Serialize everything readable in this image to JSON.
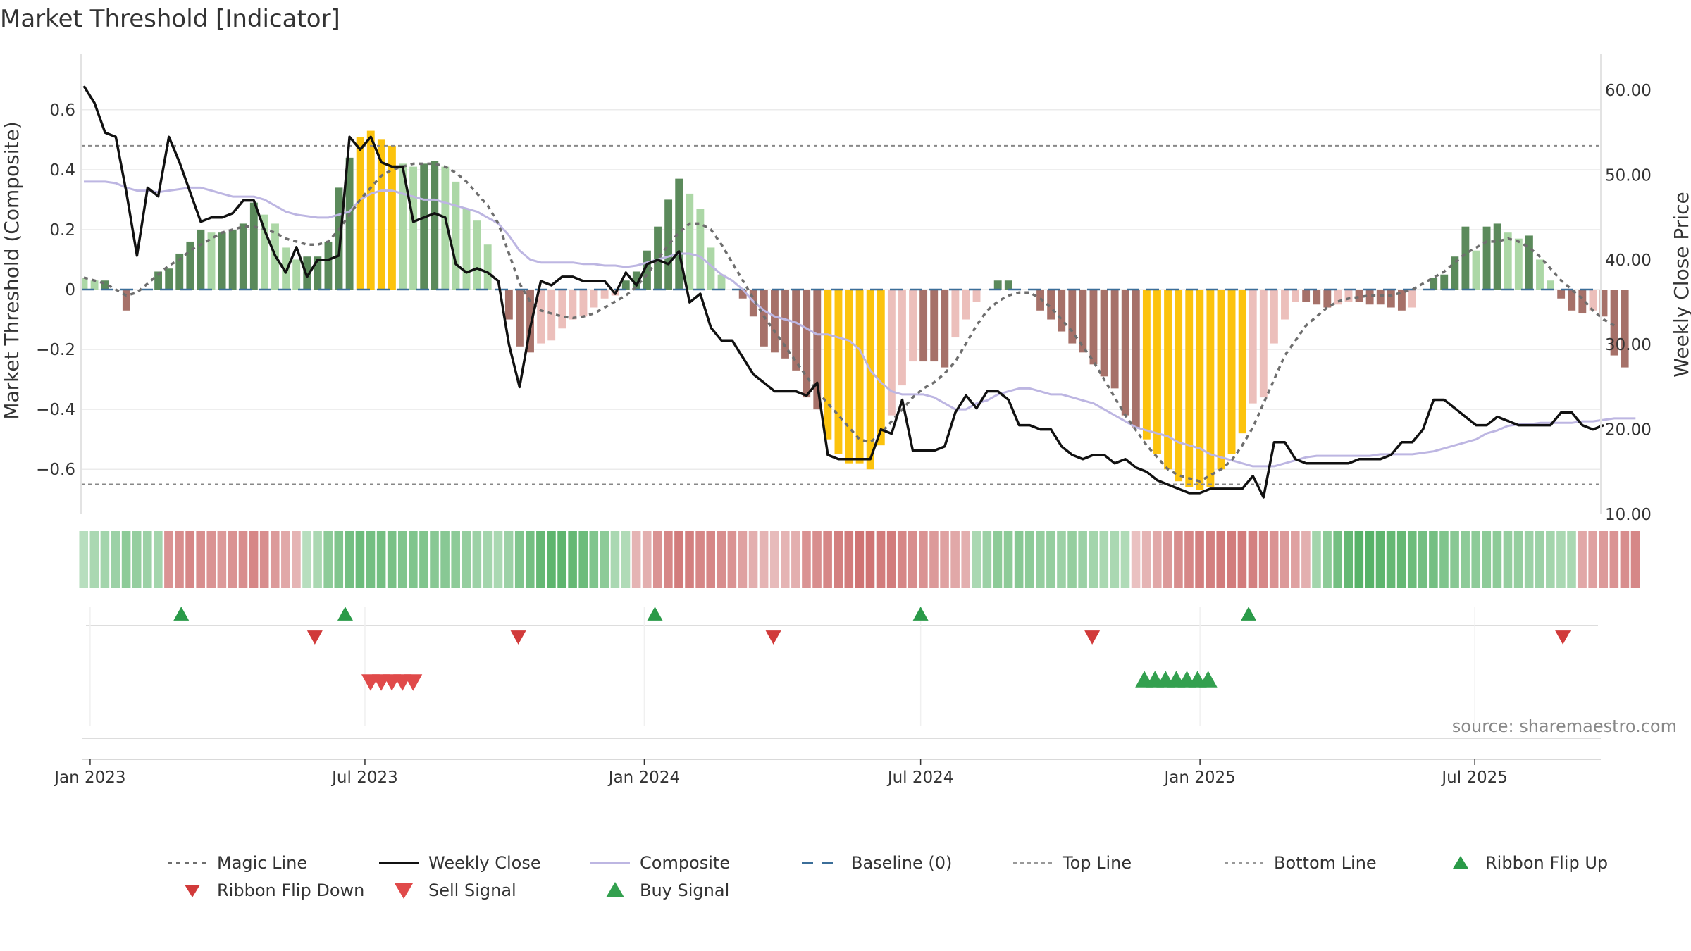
{
  "chart_data": {
    "type": "bar",
    "title": "Market Threshold [Indicator]",
    "ylabel": "Market Threshold (Composite)",
    "y2label": "Weekly Close Price",
    "ylim": [
      -0.75,
      0.75
    ],
    "y2lim": [
      10,
      63
    ],
    "yticks": [
      0.6,
      0.4,
      0.2,
      0,
      -0.2,
      -0.4,
      -0.6
    ],
    "ytick_labels": [
      "0.6",
      "0.4",
      "0.2",
      "0",
      "−0.2",
      "−0.4",
      "−0.6"
    ],
    "y2ticks": [
      60,
      50,
      40,
      30,
      20,
      10
    ],
    "y2tick_labels": [
      "60.00",
      "50.00",
      "40.00",
      "30.00",
      "20.00",
      "10.00"
    ],
    "x_start": "2022-12-26",
    "x_end": "2025-09-22",
    "x_ticks": [
      {
        "date": "2023-01-01",
        "label": "Jan 2023"
      },
      {
        "date": "2023-07-01",
        "label": "Jul 2023"
      },
      {
        "date": "2024-01-01",
        "label": "Jan 2024"
      },
      {
        "date": "2024-07-01",
        "label": "Jul 2024"
      },
      {
        "date": "2025-01-01",
        "label": "Jan 2025"
      },
      {
        "date": "2025-07-01",
        "label": "Jul 2025"
      }
    ],
    "top_line": 0.48,
    "bottom_line": -0.65,
    "baseline": 0,
    "bars_start": "2022-12-26",
    "bar_values": [
      0.04,
      0.03,
      0.03,
      0.0,
      -0.07,
      0.0,
      0.0,
      0.06,
      0.07,
      0.12,
      0.16,
      0.2,
      0.19,
      0.19,
      0.2,
      0.22,
      0.29,
      0.25,
      0.22,
      0.14,
      0.1,
      0.11,
      0.11,
      0.16,
      0.34,
      0.44,
      0.51,
      0.53,
      0.5,
      0.48,
      0.42,
      0.41,
      0.42,
      0.43,
      0.41,
      0.36,
      0.27,
      0.23,
      0.15,
      0.0,
      -0.1,
      -0.19,
      -0.21,
      -0.18,
      -0.17,
      -0.13,
      -0.1,
      -0.09,
      -0.06,
      -0.03,
      -0.02,
      0.03,
      0.06,
      0.13,
      0.21,
      0.3,
      0.37,
      0.32,
      0.27,
      0.14,
      0.05,
      0.0,
      -0.03,
      -0.09,
      -0.19,
      -0.21,
      -0.23,
      -0.27,
      -0.36,
      -0.4,
      -0.5,
      -0.55,
      -0.58,
      -0.58,
      -0.6,
      -0.52,
      -0.42,
      -0.32,
      -0.24,
      -0.24,
      -0.24,
      -0.26,
      -0.16,
      -0.1,
      -0.04,
      0.0,
      0.03,
      0.03,
      0.0,
      0.0,
      -0.07,
      -0.1,
      -0.14,
      -0.18,
      -0.21,
      -0.25,
      -0.29,
      -0.33,
      -0.42,
      -0.46,
      -0.5,
      -0.55,
      -0.6,
      -0.64,
      -0.66,
      -0.67,
      -0.66,
      -0.6,
      -0.55,
      -0.48,
      -0.38,
      -0.36,
      -0.18,
      -0.1,
      -0.04,
      -0.04,
      -0.05,
      -0.06,
      -0.05,
      -0.04,
      -0.04,
      -0.05,
      -0.05,
      -0.06,
      -0.07,
      -0.06,
      0.0,
      0.04,
      0.05,
      0.11,
      0.21,
      0.13,
      0.21,
      0.22,
      0.19,
      0.17,
      0.18,
      0.1,
      0.03,
      -0.03,
      -0.07,
      -0.08,
      -0.07,
      -0.09,
      -0.22,
      -0.26
    ],
    "bar_colors": {
      "pos_strong": "#5b8a5b",
      "pos_weak": "#acd7a6",
      "neg_strong": "#a67169",
      "neg_weak": "#ecbfbb",
      "extreme": "#fcc30d"
    },
    "series": [
      {
        "name": "Weekly Close",
        "axis": "right",
        "color": "#111111",
        "values": [
          60.5,
          58.5,
          55.0,
          54.5,
          48.0,
          40.5,
          48.5,
          47.5,
          54.5,
          51.5,
          48.0,
          44.5,
          45.0,
          45.0,
          45.5,
          47.0,
          47.0,
          43.5,
          40.5,
          38.5,
          41.5,
          38.0,
          40.0,
          40.0,
          40.5,
          54.5,
          53.0,
          54.5,
          51.5,
          51.0,
          51.0,
          44.5,
          45.0,
          45.5,
          45.0,
          39.5,
          38.5,
          39.0,
          38.5,
          37.5,
          30.0,
          25.0,
          32.0,
          37.5,
          37.0,
          38.0,
          38.0,
          37.5,
          37.5,
          37.5,
          36.0,
          38.5,
          37.0,
          39.5,
          40.0,
          39.5,
          41.0,
          35.0,
          36.0,
          32.0,
          30.5,
          30.5,
          28.5,
          26.5,
          25.5,
          24.5,
          24.5,
          24.5,
          24.0,
          25.5,
          17.0,
          16.5,
          16.5,
          16.5,
          16.5,
          20.0,
          19.5,
          23.5,
          17.5,
          17.5,
          17.5,
          18.0,
          22.0,
          24.0,
          22.5,
          24.5,
          24.5,
          23.5,
          20.5,
          20.5,
          20.0,
          20.0,
          18.0,
          17.0,
          16.5,
          17.0,
          17.0,
          16.0,
          16.5,
          15.5,
          15.0,
          14.0,
          13.5,
          13.0,
          12.5,
          12.5,
          13.0,
          13.0,
          13.0,
          13.0,
          14.5,
          12.0,
          18.5,
          18.5,
          16.5,
          16.0,
          16.0,
          16.0,
          16.0,
          16.0,
          16.5,
          16.5,
          16.5,
          17.0,
          18.5,
          18.5,
          20.0,
          23.5,
          23.5,
          22.5,
          21.5,
          20.5,
          20.5,
          21.5,
          21.0,
          20.5,
          20.5,
          20.5,
          20.5,
          22.0,
          22.0,
          20.5,
          20.0,
          20.5
        ]
      },
      {
        "name": "Composite",
        "axis": "left",
        "color": "#bdb6e2",
        "values": [
          0.36,
          0.36,
          0.36,
          0.355,
          0.34,
          0.33,
          0.33,
          0.325,
          0.33,
          0.335,
          0.34,
          0.34,
          0.33,
          0.32,
          0.31,
          0.31,
          0.31,
          0.3,
          0.28,
          0.26,
          0.25,
          0.245,
          0.24,
          0.24,
          0.25,
          0.26,
          0.3,
          0.32,
          0.33,
          0.33,
          0.32,
          0.31,
          0.3,
          0.3,
          0.29,
          0.28,
          0.27,
          0.26,
          0.24,
          0.22,
          0.18,
          0.13,
          0.1,
          0.09,
          0.09,
          0.09,
          0.09,
          0.085,
          0.085,
          0.08,
          0.08,
          0.075,
          0.08,
          0.09,
          0.1,
          0.11,
          0.12,
          0.12,
          0.11,
          0.08,
          0.05,
          0.03,
          0.0,
          -0.04,
          -0.07,
          -0.09,
          -0.1,
          -0.11,
          -0.13,
          -0.15,
          -0.15,
          -0.16,
          -0.17,
          -0.2,
          -0.27,
          -0.31,
          -0.34,
          -0.35,
          -0.35,
          -0.35,
          -0.36,
          -0.38,
          -0.4,
          -0.4,
          -0.38,
          -0.37,
          -0.35,
          -0.34,
          -0.33,
          -0.33,
          -0.34,
          -0.35,
          -0.35,
          -0.36,
          -0.37,
          -0.38,
          -0.4,
          -0.42,
          -0.44,
          -0.46,
          -0.47,
          -0.48,
          -0.49,
          -0.51,
          -0.52,
          -0.53,
          -0.55,
          -0.56,
          -0.57,
          -0.58,
          -0.59,
          -0.59,
          -0.59,
          -0.58,
          -0.57,
          -0.56,
          -0.555,
          -0.555,
          -0.555,
          -0.555,
          -0.555,
          -0.555,
          -0.55,
          -0.55,
          -0.55,
          -0.55,
          -0.545,
          -0.54,
          -0.53,
          -0.52,
          -0.51,
          -0.5,
          -0.48,
          -0.47,
          -0.455,
          -0.45,
          -0.45,
          -0.445,
          -0.445,
          -0.445,
          -0.445,
          -0.44,
          -0.44,
          -0.435,
          -0.43,
          -0.43,
          -0.43
        ]
      },
      {
        "name": "Magic Line",
        "axis": "left",
        "color": "#6e6e6e",
        "values": [
          0.04,
          0.03,
          0.02,
          0.0,
          -0.02,
          -0.01,
          0.02,
          0.05,
          0.08,
          0.1,
          0.13,
          0.15,
          0.17,
          0.19,
          0.2,
          0.21,
          0.21,
          0.2,
          0.19,
          0.17,
          0.16,
          0.15,
          0.15,
          0.16,
          0.2,
          0.25,
          0.3,
          0.34,
          0.38,
          0.4,
          0.41,
          0.42,
          0.42,
          0.42,
          0.41,
          0.39,
          0.36,
          0.32,
          0.28,
          0.22,
          0.12,
          0.02,
          -0.04,
          -0.07,
          -0.08,
          -0.09,
          -0.095,
          -0.09,
          -0.08,
          -0.06,
          -0.04,
          -0.02,
          0.01,
          0.05,
          0.1,
          0.15,
          0.19,
          0.22,
          0.22,
          0.2,
          0.15,
          0.09,
          0.03,
          -0.03,
          -0.09,
          -0.14,
          -0.19,
          -0.24,
          -0.29,
          -0.34,
          -0.38,
          -0.42,
          -0.46,
          -0.5,
          -0.51,
          -0.48,
          -0.44,
          -0.4,
          -0.36,
          -0.33,
          -0.31,
          -0.28,
          -0.24,
          -0.18,
          -0.12,
          -0.07,
          -0.04,
          -0.02,
          -0.01,
          -0.01,
          -0.03,
          -0.06,
          -0.1,
          -0.14,
          -0.19,
          -0.24,
          -0.3,
          -0.36,
          -0.42,
          -0.47,
          -0.52,
          -0.56,
          -0.6,
          -0.62,
          -0.63,
          -0.64,
          -0.62,
          -0.6,
          -0.57,
          -0.52,
          -0.46,
          -0.38,
          -0.3,
          -0.22,
          -0.17,
          -0.12,
          -0.09,
          -0.06,
          -0.04,
          -0.03,
          -0.025,
          -0.02,
          -0.02,
          -0.02,
          -0.01,
          0.0,
          0.02,
          0.04,
          0.06,
          0.09,
          0.12,
          0.14,
          0.16,
          0.16,
          0.17,
          0.16,
          0.14,
          0.11,
          0.07,
          0.03,
          0.0,
          -0.03,
          -0.07,
          -0.1,
          -0.12
        ]
      }
    ],
    "ribbon": [
      0.2,
      0.3,
      0.35,
      0.4,
      0.5,
      0.45,
      0.4,
      0.35,
      -0.5,
      -0.55,
      -0.6,
      -0.55,
      -0.5,
      -0.45,
      -0.5,
      -0.55,
      -0.6,
      -0.55,
      -0.45,
      -0.35,
      -0.25,
      0.2,
      0.3,
      0.5,
      0.6,
      0.7,
      0.75,
      0.7,
      0.7,
      0.65,
      0.6,
      0.6,
      0.6,
      0.55,
      0.55,
      0.5,
      0.45,
      0.4,
      0.35,
      0.3,
      0.4,
      0.6,
      0.7,
      0.8,
      0.85,
      0.85,
      0.8,
      0.75,
      0.6,
      0.5,
      0.3,
      0.25,
      -0.25,
      -0.3,
      -0.5,
      -0.6,
      -0.7,
      -0.65,
      -0.6,
      -0.6,
      -0.55,
      -0.5,
      -0.4,
      -0.3,
      -0.25,
      -0.2,
      -0.25,
      -0.3,
      -0.5,
      -0.55,
      -0.6,
      -0.65,
      -0.7,
      -0.75,
      -0.75,
      -0.7,
      -0.7,
      -0.6,
      -0.55,
      -0.5,
      -0.45,
      -0.4,
      -0.35,
      -0.3,
      0.3,
      0.4,
      0.5,
      0.5,
      0.55,
      0.5,
      0.45,
      0.45,
      0.4,
      0.45,
      0.4,
      0.35,
      0.3,
      0.3,
      0.25,
      -0.15,
      -0.25,
      -0.35,
      -0.45,
      -0.55,
      -0.6,
      -0.65,
      -0.65,
      -0.7,
      -0.7,
      -0.7,
      -0.65,
      -0.6,
      -0.5,
      -0.45,
      -0.4,
      -0.3,
      0.35,
      0.5,
      0.7,
      0.8,
      0.9,
      0.9,
      0.85,
      0.8,
      0.8,
      0.75,
      0.7,
      0.7,
      0.6,
      0.55,
      0.5,
      0.5,
      0.5,
      0.5,
      0.45,
      0.45,
      0.4,
      0.4,
      0.35,
      0.3,
      0.3,
      -0.35,
      -0.4,
      -0.45,
      -0.5,
      -0.55,
      -0.6
    ],
    "markers": {
      "ribbon_flip_up": [
        "2023-03-02",
        "2023-06-18",
        "2024-01-08",
        "2024-07-01",
        "2025-02-02"
      ],
      "ribbon_flip_down": [
        "2023-05-29",
        "2023-10-10",
        "2024-03-26",
        "2024-10-22",
        "2025-08-28"
      ],
      "sell_signal": [
        "2023-07-01",
        "2023-07-08",
        "2023-07-15",
        "2023-07-22",
        "2023-07-29"
      ],
      "buy_signal": [
        "2024-11-30",
        "2024-12-07",
        "2024-12-14",
        "2024-12-21",
        "2024-12-28",
        "2025-01-04",
        "2025-01-11"
      ]
    },
    "marker_colors": {
      "ribbon_flip_up": "#2a9a48",
      "ribbon_flip_down": "#d13a3a",
      "sell_signal": "#e04a4a",
      "buy_signal": "#33a04f"
    },
    "legend": [
      {
        "key": "magic",
        "label": "Magic Line"
      },
      {
        "key": "close",
        "label": "Weekly Close"
      },
      {
        "key": "composite",
        "label": "Composite"
      },
      {
        "key": "baseline",
        "label": "Baseline (0)"
      },
      {
        "key": "top",
        "label": "Top Line"
      },
      {
        "key": "bottom",
        "label": "Bottom Line"
      },
      {
        "key": "flip_up",
        "label": "Ribbon Flip Up"
      },
      {
        "key": "flip_down",
        "label": "Ribbon Flip Down"
      },
      {
        "key": "sell",
        "label": "Sell Signal"
      },
      {
        "key": "buy",
        "label": "Buy Signal"
      }
    ],
    "source": "source: sharemaestro.com"
  }
}
